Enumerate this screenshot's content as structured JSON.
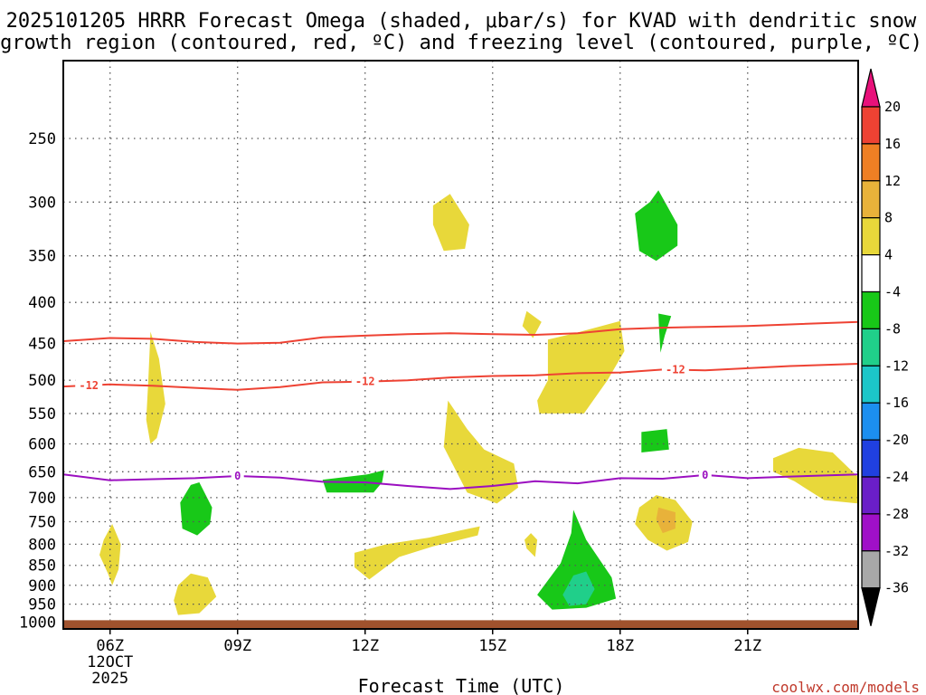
{
  "chart_data": {
    "type": "heatmap",
    "title_lines": [
      "2025101205 HRRR Forecast Omega (shaded, μbar/s) for KVAD with dendritic snow",
      "growth region (contoured, red, ºC) and freezing level (contoured, purple, ºC)"
    ],
    "xlabel": "Forecast Time (UTC)",
    "credit": "coolwx.com/models",
    "x_range_hours": [
      4.9,
      23.6
    ],
    "x_ticks": [
      {
        "hour": 6,
        "label": "06Z",
        "sub": [
          "12OCT",
          "2025"
        ]
      },
      {
        "hour": 9,
        "label": "09Z"
      },
      {
        "hour": 12,
        "label": "12Z"
      },
      {
        "hour": 15,
        "label": "15Z"
      },
      {
        "hour": 18,
        "label": "18Z"
      },
      {
        "hour": 21,
        "label": "21Z"
      }
    ],
    "y_axis": {
      "scale": "log-pressure",
      "range_hpa": [
        1020,
        200
      ],
      "ticks": [
        250,
        300,
        350,
        400,
        450,
        500,
        550,
        600,
        650,
        700,
        750,
        800,
        850,
        900,
        950,
        1000
      ]
    },
    "ground_level_hpa": 1000,
    "colorbar": {
      "ticks": [
        "20",
        "16",
        "12",
        "8",
        "4",
        "-4",
        "-8",
        "-12",
        "-16",
        "-20",
        "-24",
        "-28",
        "-32",
        "-36"
      ],
      "bins": [
        {
          "range": ">20",
          "color": "#e8117a"
        },
        {
          "range": "16 to 20",
          "color": "#ee4233"
        },
        {
          "range": "12 to 16",
          "color": "#ef7f24"
        },
        {
          "range": "8 to 12",
          "color": "#e8b23a"
        },
        {
          "range": "4 to 8",
          "color": "#e8d83a"
        },
        {
          "range": "-4 to 4",
          "color": "#ffffff"
        },
        {
          "range": "-8 to -4",
          "color": "#18c818"
        },
        {
          "range": "-12 to -8",
          "color": "#20cf8a"
        },
        {
          "range": "-16 to -12",
          "color": "#1cc7c9"
        },
        {
          "range": "-20 to -16",
          "color": "#1c8ff0"
        },
        {
          "range": "-24 to -20",
          "color": "#2040e0"
        },
        {
          "range": "-28 to -24",
          "color": "#6a1ec8"
        },
        {
          "range": "-32 to -28",
          "color": "#a010c8"
        },
        {
          "range": "-36 to -32",
          "color": "#a8a8a8"
        },
        {
          "range": "<-36",
          "color": "#000000"
        }
      ]
    },
    "contours": [
      {
        "name": "-12C upper",
        "color": "#ee4233",
        "label": "",
        "points": [
          [
            4.9,
            447
          ],
          [
            6,
            443
          ],
          [
            7,
            444
          ],
          [
            8,
            448
          ],
          [
            9,
            450
          ],
          [
            10,
            449
          ],
          [
            11,
            442
          ],
          [
            12,
            440
          ],
          [
            13,
            438
          ],
          [
            14,
            437
          ],
          [
            15,
            438
          ],
          [
            16,
            439
          ],
          [
            17,
            437
          ],
          [
            18,
            432
          ],
          [
            19,
            430
          ],
          [
            20,
            429
          ],
          [
            21,
            428
          ],
          [
            22,
            426
          ],
          [
            23.6,
            423
          ]
        ]
      },
      {
        "name": "-12C lower",
        "color": "#ee4233",
        "label": "-12",
        "label_hours": [
          5.5,
          12,
          19.3
        ],
        "points": [
          [
            4.9,
            509
          ],
          [
            6,
            506
          ],
          [
            7,
            508
          ],
          [
            8,
            511
          ],
          [
            9,
            514
          ],
          [
            10,
            510
          ],
          [
            11,
            503
          ],
          [
            12,
            502
          ],
          [
            13,
            500
          ],
          [
            14,
            496
          ],
          [
            15,
            494
          ],
          [
            16,
            493
          ],
          [
            17,
            490
          ],
          [
            18,
            489
          ],
          [
            19,
            485
          ],
          [
            20,
            486
          ],
          [
            21,
            483
          ],
          [
            22,
            480
          ],
          [
            23.6,
            477
          ]
        ]
      },
      {
        "name": "0C freezing level",
        "color": "#9b0fc0",
        "label": "0",
        "label_hours": [
          9,
          20
        ],
        "points": [
          [
            4.9,
            655
          ],
          [
            6,
            666
          ],
          [
            7,
            664
          ],
          [
            8,
            662
          ],
          [
            9,
            658
          ],
          [
            10,
            661
          ],
          [
            11,
            669
          ],
          [
            12,
            670
          ],
          [
            13,
            677
          ],
          [
            14,
            683
          ],
          [
            15,
            677
          ],
          [
            16,
            668
          ],
          [
            17,
            672
          ],
          [
            18,
            662
          ],
          [
            19,
            663
          ],
          [
            20,
            656
          ],
          [
            21,
            662
          ],
          [
            22,
            659
          ],
          [
            23.6,
            655
          ]
        ]
      }
    ],
    "omega_regions": [
      {
        "value": "4 to 8",
        "color": "#e8d83a",
        "points": [
          [
            6.95,
            435
          ],
          [
            7.15,
            470
          ],
          [
            7.3,
            535
          ],
          [
            7.1,
            590
          ],
          [
            6.95,
            600
          ],
          [
            6.85,
            560
          ],
          [
            6.9,
            500
          ]
        ]
      },
      {
        "value": "4 to 8",
        "color": "#e8d83a",
        "points": [
          [
            6.05,
            755
          ],
          [
            6.25,
            800
          ],
          [
            6.2,
            860
          ],
          [
            6.05,
            900
          ],
          [
            5.95,
            870
          ],
          [
            5.75,
            825
          ],
          [
            5.85,
            790
          ]
        ]
      },
      {
        "value": "4 to 8",
        "color": "#e8d83a",
        "points": [
          [
            7.5,
            940
          ],
          [
            7.6,
            900
          ],
          [
            7.9,
            870
          ],
          [
            8.3,
            880
          ],
          [
            8.5,
            930
          ],
          [
            8.1,
            975
          ],
          [
            7.6,
            980
          ]
        ]
      },
      {
        "value": "4 to 8",
        "color": "#e8d83a",
        "points": [
          [
            13.6,
            303
          ],
          [
            14.0,
            293
          ],
          [
            14.45,
            320
          ],
          [
            14.35,
            343
          ],
          [
            13.85,
            345
          ],
          [
            13.6,
            320
          ]
        ]
      },
      {
        "value": "4 to 8",
        "color": "#e8d83a",
        "points": [
          [
            13.95,
            530
          ],
          [
            14.4,
            575
          ],
          [
            14.8,
            610
          ],
          [
            15.5,
            635
          ],
          [
            15.6,
            680
          ],
          [
            15.1,
            712
          ],
          [
            14.4,
            690
          ],
          [
            13.85,
            605
          ]
        ]
      },
      {
        "value": "4 to 8",
        "color": "#e8d83a",
        "points": [
          [
            11.75,
            820
          ],
          [
            12.5,
            800
          ],
          [
            13.5,
            785
          ],
          [
            14.2,
            770
          ],
          [
            14.7,
            760
          ],
          [
            14.65,
            780
          ],
          [
            13.6,
            805
          ],
          [
            12.8,
            830
          ],
          [
            12.1,
            885
          ],
          [
            11.75,
            855
          ]
        ]
      },
      {
        "value": "4 to 8",
        "color": "#e8d83a",
        "points": [
          [
            15.8,
            410
          ],
          [
            16.15,
            423
          ],
          [
            15.95,
            443
          ],
          [
            15.7,
            428
          ]
        ]
      },
      {
        "value": "4 to 8",
        "color": "#e8d83a",
        "points": [
          [
            16.3,
            445
          ],
          [
            17.0,
            436
          ],
          [
            18.0,
            422
          ],
          [
            18.1,
            460
          ],
          [
            17.7,
            500
          ],
          [
            17.15,
            550
          ],
          [
            16.1,
            550
          ],
          [
            16.05,
            530
          ],
          [
            16.3,
            500
          ]
        ]
      },
      {
        "value": "4 to 8",
        "color": "#e8d83a",
        "points": [
          [
            15.9,
            775
          ],
          [
            16.05,
            790
          ],
          [
            16.0,
            830
          ],
          [
            15.8,
            810
          ],
          [
            15.75,
            790
          ]
        ]
      },
      {
        "value": "4 to 8",
        "color": "#e8d83a",
        "points": [
          [
            18.45,
            720
          ],
          [
            18.85,
            695
          ],
          [
            19.3,
            705
          ],
          [
            19.7,
            750
          ],
          [
            19.6,
            795
          ],
          [
            19.1,
            815
          ],
          [
            18.65,
            790
          ],
          [
            18.35,
            755
          ]
        ]
      },
      {
        "value": "8 to 12",
        "color": "#e8b23a",
        "points": [
          [
            18.9,
            720
          ],
          [
            19.3,
            730
          ],
          [
            19.3,
            765
          ],
          [
            19.0,
            775
          ],
          [
            18.85,
            745
          ]
        ]
      },
      {
        "value": "4 to 8",
        "color": "#e8d83a",
        "points": [
          [
            21.6,
            625
          ],
          [
            22.2,
            607
          ],
          [
            23.0,
            615
          ],
          [
            23.6,
            660
          ],
          [
            23.6,
            712
          ],
          [
            22.8,
            705
          ],
          [
            22.1,
            668
          ],
          [
            21.6,
            650
          ]
        ]
      },
      {
        "value": "-8 to -4",
        "color": "#18c818",
        "points": [
          [
            18.35,
            310
          ],
          [
            18.7,
            300
          ],
          [
            18.9,
            290
          ],
          [
            19.35,
            320
          ],
          [
            19.35,
            340
          ],
          [
            18.85,
            355
          ],
          [
            18.45,
            345
          ]
        ]
      },
      {
        "value": "-8 to -4",
        "color": "#18c818",
        "points": [
          [
            18.9,
            413
          ],
          [
            19.2,
            416
          ],
          [
            19.05,
            440
          ],
          [
            18.95,
            462
          ],
          [
            18.92,
            435
          ]
        ]
      },
      {
        "value": "-8 to -4",
        "color": "#18c818",
        "points": [
          [
            18.5,
            580
          ],
          [
            19.1,
            575
          ],
          [
            19.15,
            610
          ],
          [
            18.5,
            615
          ]
        ]
      },
      {
        "value": "-8 to -4",
        "color": "#18c818",
        "points": [
          [
            7.65,
            710
          ],
          [
            7.9,
            675
          ],
          [
            8.1,
            670
          ],
          [
            8.4,
            720
          ],
          [
            8.35,
            755
          ],
          [
            8.05,
            780
          ],
          [
            7.7,
            765
          ]
        ]
      },
      {
        "value": "-8 to -4",
        "color": "#18c818",
        "points": [
          [
            11.0,
            665
          ],
          [
            12.05,
            655
          ],
          [
            12.45,
            647
          ],
          [
            12.4,
            670
          ],
          [
            12.2,
            690
          ],
          [
            11.1,
            690
          ]
        ]
      },
      {
        "value": "-8 to -4",
        "color": "#18c818",
        "points": [
          [
            16.9,
            725
          ],
          [
            17.2,
            790
          ],
          [
            17.8,
            880
          ],
          [
            17.9,
            935
          ],
          [
            17.2,
            960
          ],
          [
            16.4,
            965
          ],
          [
            16.05,
            925
          ],
          [
            16.6,
            845
          ],
          [
            16.85,
            775
          ]
        ]
      },
      {
        "value": "-12 to -8",
        "color": "#20cf8a",
        "points": [
          [
            16.9,
            875
          ],
          [
            17.2,
            865
          ],
          [
            17.4,
            910
          ],
          [
            17.2,
            950
          ],
          [
            16.8,
            955
          ],
          [
            16.65,
            925
          ]
        ]
      }
    ]
  }
}
